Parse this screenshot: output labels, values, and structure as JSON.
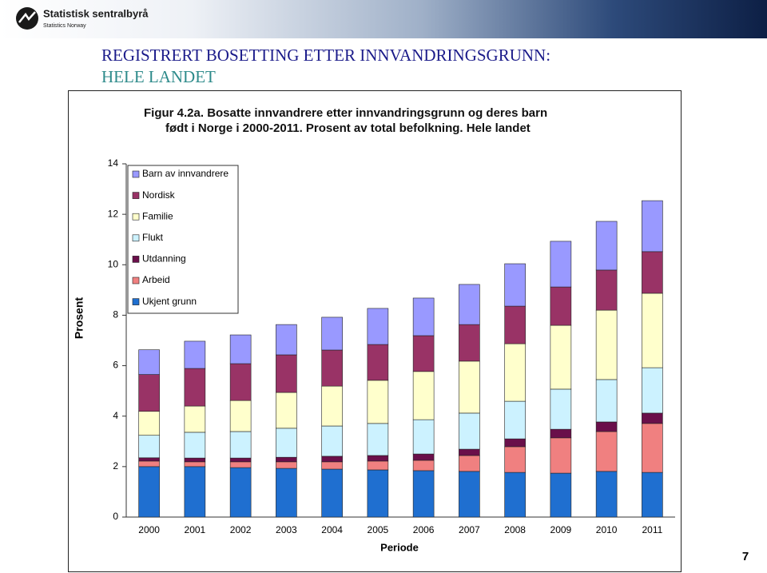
{
  "slide": {
    "logo_name": "Statistisk sentralbyrå",
    "logo_sub": "Statistics Norway",
    "heading_line1": "REGISTRERT BOSETTING ETTER INNVANDRINGSGRUNN:",
    "heading_line2": "HELE LANDET",
    "page_number": "7"
  },
  "chart_data": {
    "type": "stacked-bar",
    "title": [
      "Figur 4.2a. Bosatte innvandrere etter innvandringsgrunn og deres barn",
      "født i Norge i 2000-2011. Prosent av total befolkning. Hele landet"
    ],
    "y_label": "Prosent",
    "x_label": "Periode",
    "categories": [
      "2000",
      "2001",
      "2002",
      "2003",
      "2004",
      "2005",
      "2006",
      "2007",
      "2008",
      "2009",
      "2010",
      "2011"
    ],
    "series": [
      {
        "name": "Ukjent grunn",
        "color": "#1f6fd0",
        "values": [
          2.0,
          2.0,
          1.96,
          1.93,
          1.9,
          1.87,
          1.84,
          1.81,
          1.77,
          1.74,
          1.81,
          1.77
        ]
      },
      {
        "name": "Arbeid",
        "color": "#f08080",
        "values": [
          0.22,
          0.19,
          0.23,
          0.26,
          0.29,
          0.35,
          0.41,
          0.63,
          1.02,
          1.4,
          1.58,
          1.94
        ]
      },
      {
        "name": "Utdanning",
        "color": "#6a0f4a",
        "values": [
          0.13,
          0.15,
          0.15,
          0.18,
          0.22,
          0.22,
          0.25,
          0.25,
          0.31,
          0.34,
          0.38,
          0.41
        ]
      },
      {
        "name": "Flukt",
        "color": "#ccf2ff",
        "values": [
          0.89,
          1.02,
          1.05,
          1.15,
          1.2,
          1.27,
          1.36,
          1.43,
          1.49,
          1.59,
          1.68,
          1.8
        ]
      },
      {
        "name": "Familie",
        "color": "#ffffcc",
        "values": [
          0.95,
          1.04,
          1.23,
          1.42,
          1.58,
          1.71,
          1.91,
          2.06,
          2.28,
          2.53,
          2.75,
          2.95
        ]
      },
      {
        "name": "Nordisk",
        "color": "#993366",
        "values": [
          1.46,
          1.49,
          1.46,
          1.49,
          1.43,
          1.42,
          1.42,
          1.45,
          1.49,
          1.52,
          1.59,
          1.65
        ]
      },
      {
        "name": "Barn av innvandrere",
        "color": "#9999ff",
        "values": [
          0.98,
          1.08,
          1.14,
          1.2,
          1.3,
          1.43,
          1.49,
          1.59,
          1.68,
          1.81,
          1.93,
          2.02
        ]
      }
    ],
    "ylim": [
      0,
      14
    ],
    "yticks": [
      0,
      2,
      4,
      6,
      8,
      10,
      12,
      14
    ],
    "grid": false,
    "legend": "top-left"
  }
}
